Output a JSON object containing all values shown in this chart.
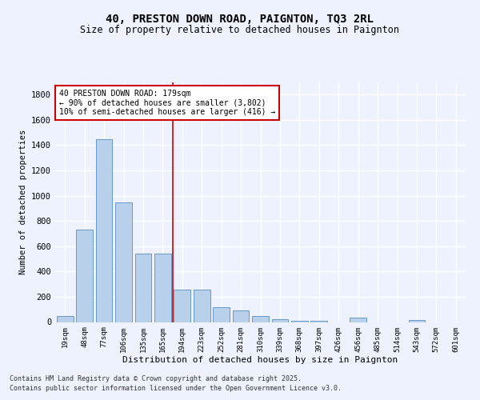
{
  "title_line1": "40, PRESTON DOWN ROAD, PAIGNTON, TQ3 2RL",
  "title_line2": "Size of property relative to detached houses in Paignton",
  "xlabel": "Distribution of detached houses by size in Paignton",
  "ylabel": "Number of detached properties",
  "categories": [
    "19sqm",
    "48sqm",
    "77sqm",
    "106sqm",
    "135sqm",
    "165sqm",
    "194sqm",
    "223sqm",
    "252sqm",
    "281sqm",
    "310sqm",
    "339sqm",
    "368sqm",
    "397sqm",
    "426sqm",
    "456sqm",
    "485sqm",
    "514sqm",
    "543sqm",
    "572sqm",
    "601sqm"
  ],
  "values": [
    50,
    730,
    1450,
    950,
    540,
    540,
    255,
    255,
    115,
    90,
    50,
    25,
    10,
    8,
    0,
    35,
    0,
    0,
    15,
    0,
    0
  ],
  "bar_color": "#B8D0EA",
  "bar_edge_color": "#6699CC",
  "vline_x": 5.5,
  "vline_color": "#CC0000",
  "annotation_text": "40 PRESTON DOWN ROAD: 179sqm\n← 90% of detached houses are smaller (3,802)\n10% of semi-detached houses are larger (416) →",
  "annotation_box_color": "#CC0000",
  "ylim": [
    0,
    1900
  ],
  "yticks": [
    0,
    200,
    400,
    600,
    800,
    1000,
    1200,
    1400,
    1600,
    1800
  ],
  "footer_line1": "Contains HM Land Registry data © Crown copyright and database right 2025.",
  "footer_line2": "Contains public sector information licensed under the Open Government Licence v3.0.",
  "background_color": "#EEF2FF",
  "grid_color": "#FFFFFF"
}
